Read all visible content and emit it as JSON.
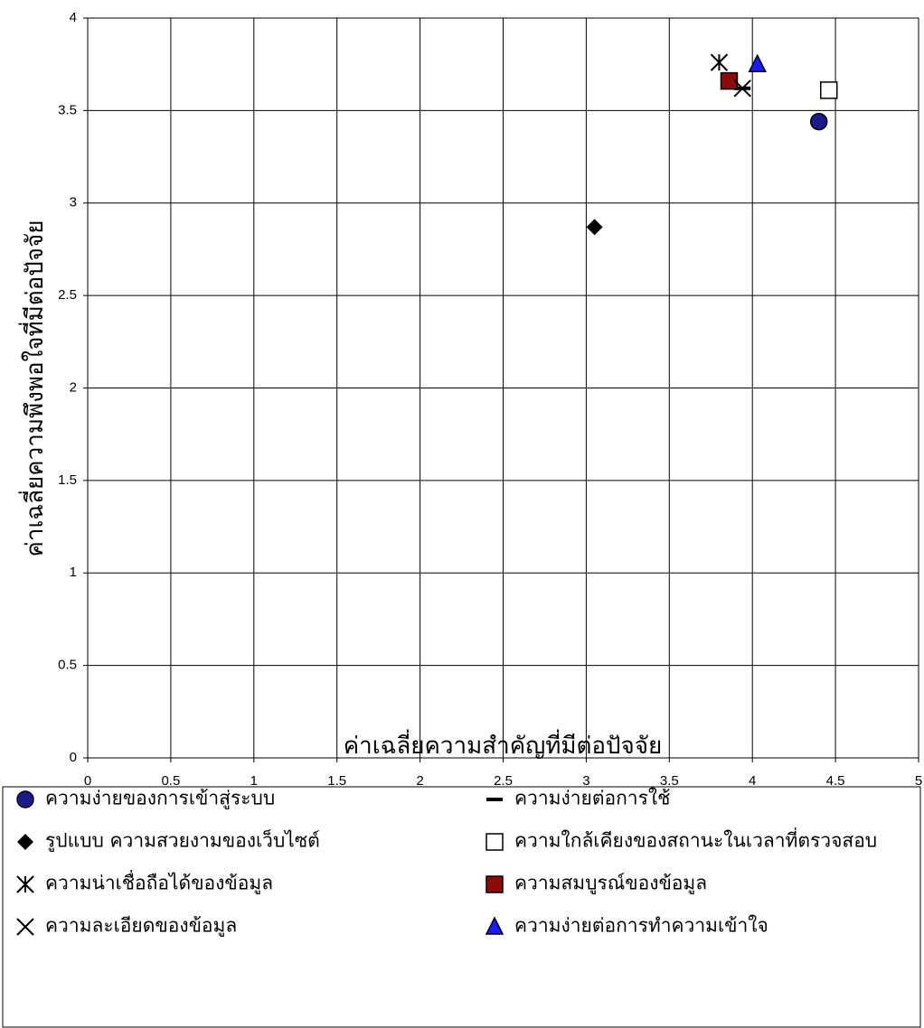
{
  "chart_data": {
    "type": "scatter",
    "x_label": "ค่าเฉลี่ยความสำคัญที่มีต่อปัจจัย",
    "y_label": "ค่าเฉลี่ยความพึงพอใจที่มีต่อปัจจัย",
    "xlim": [
      0,
      5
    ],
    "xticks": [
      0,
      0.5,
      1,
      1.5,
      2,
      2.5,
      3,
      3.5,
      4,
      4.5,
      5
    ],
    "ylim": [
      0,
      4
    ],
    "yticks": [
      0,
      0.5,
      1,
      1.5,
      2,
      2.5,
      3,
      3.5,
      4
    ],
    "grid": true,
    "legend": "bottom",
    "series": [
      {
        "name": "ความง่ายของการเข้าสู่ระบบ",
        "marker": "circle",
        "color": "#1a1a8c",
        "x": [
          4.4
        ],
        "values": [
          3.44
        ]
      },
      {
        "name": "ความง่ายต่อการใช้",
        "marker": "dash",
        "color": "#000000",
        "x": [
          3.94
        ],
        "values": [
          3.62
        ]
      },
      {
        "name": "รูปแบบ ความสวยงามของเว็บไซต์",
        "marker": "diamond",
        "color": "#000000",
        "x": [
          3.05
        ],
        "values": [
          2.87
        ]
      },
      {
        "name": "ความใกล้เคียงของสถานะในเวลาที่ตรวจสอบ",
        "marker": "square-open",
        "color": "#ffffff",
        "x": [
          4.46
        ],
        "values": [
          3.61
        ]
      },
      {
        "name": "ความน่าเชื่อถือได้ของข้อมูล",
        "marker": "asterisk",
        "color": "#000000",
        "x": [
          3.8
        ],
        "values": [
          3.76
        ]
      },
      {
        "name": "ความสมบูรณ์ของข้อมูล",
        "marker": "square",
        "color": "#8b0a0a",
        "x": [
          3.86
        ],
        "values": [
          3.66
        ]
      },
      {
        "name": "ความละเอียดของข้อมูล",
        "marker": "x",
        "color": "#000000",
        "x": [
          3.94
        ],
        "values": [
          3.62
        ]
      },
      {
        "name": "ความง่ายต่อการทำความเข้าใจ",
        "marker": "triangle",
        "color": "#1a1aff",
        "x": [
          4.03
        ],
        "values": [
          3.75
        ]
      }
    ]
  }
}
